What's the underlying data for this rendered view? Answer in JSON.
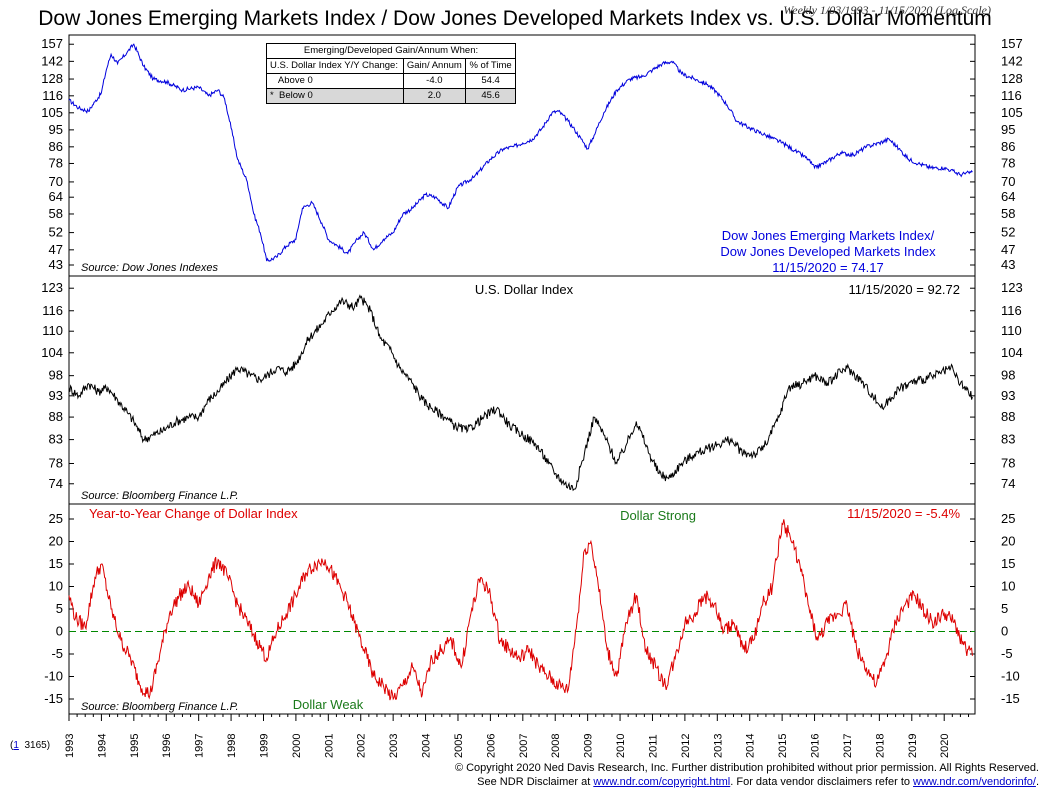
{
  "title": "Dow Jones Emerging Markets Index / Dow Jones Developed Markets Index vs. U.S. Dollar Momentum",
  "subtitle": "Weekly 1/03/1993 - 11/15/2020 (Log Scale)",
  "table": {
    "header": "Emerging/Developed Gain/Annum When:",
    "col1": "U.S. Dollar Index Y/Y Change:",
    "col2": "Gain/ Annum",
    "col3": "% of Time",
    "rows": [
      {
        "label": "Above 0",
        "gain": "-4.0",
        "pct": "54.4",
        "mark": ""
      },
      {
        "label": "Below 0",
        "gain": "2.0",
        "pct": "45.6",
        "mark": "*"
      }
    ]
  },
  "footer": {
    "line1": "© Copyright 2020 Ned Davis Research, Inc.  Further distribution prohibited without prior permission.  All Rights Reserved.",
    "line2_pre": "See NDR Disclaimer at ",
    "link1": "www.ndr.com/copyright.html",
    "line2_mid": ".  For data vendor disclaimers refer to ",
    "link2": "www.ndr.com/vendorinfo/",
    "line2_post": ".",
    "chart_ref_num": "1",
    "chart_ref": "3165)"
  },
  "colors": {
    "panel1": "#0000dd",
    "panel2": "#000000",
    "panel3": "#dd0000",
    "zero": "#008800",
    "green_text": "#1a7a1a"
  },
  "chart_data": [
    {
      "type": "line",
      "panel": "ratio",
      "log_scale": true,
      "ylim": [
        42,
        160
      ],
      "ticks": [
        43,
        47,
        52,
        58,
        64,
        70,
        78,
        86,
        95,
        105,
        116,
        128,
        142,
        157
      ],
      "source": "Source: Dow Jones Indexes",
      "label_lines": [
        "Dow Jones Emerging Markets Index/",
        "Dow Jones Developed Markets Index",
        "11/15/2020 = 74.17"
      ],
      "x": [
        1993.0,
        1993.3,
        1993.6,
        1993.8,
        1994.0,
        1994.15,
        1994.3,
        1994.5,
        1994.8,
        1995.0,
        1995.3,
        1995.6,
        1996.0,
        1996.5,
        1997.0,
        1997.3,
        1997.6,
        1997.8,
        1998.0,
        1998.2,
        1998.5,
        1998.7,
        1998.9,
        1999.1,
        1999.4,
        1999.7,
        2000.0,
        2000.2,
        2000.5,
        2000.8,
        2001.0,
        2001.3,
        2001.6,
        2001.9,
        2002.1,
        2002.4,
        2002.7,
        2003.0,
        2003.3,
        2003.6,
        2004.0,
        2004.3,
        2004.7,
        2005.0,
        2005.5,
        2006.0,
        2006.4,
        2006.7,
        2007.0,
        2007.3,
        2007.6,
        2007.9,
        2008.1,
        2008.4,
        2008.6,
        2008.8,
        2009.0,
        2009.2,
        2009.5,
        2009.9,
        2010.3,
        2010.7,
        2011.0,
        2011.3,
        2011.6,
        2011.9,
        2012.3,
        2012.7,
        2013.0,
        2013.3,
        2013.6,
        2014.0,
        2014.5,
        2015.0,
        2015.4,
        2015.8,
        2016.0,
        2016.4,
        2016.8,
        2017.2,
        2017.6,
        2018.0,
        2018.3,
        2018.6,
        2018.9,
        2019.2,
        2019.6,
        2020.0,
        2020.2,
        2020.5,
        2020.87
      ],
      "y": [
        113,
        108,
        106,
        112,
        118,
        135,
        148,
        140,
        150,
        157,
        138,
        128,
        126,
        120,
        122,
        116,
        120,
        114,
        96,
        80,
        70,
        58,
        52,
        44,
        45,
        48,
        50,
        60,
        62,
        55,
        50,
        48,
        46,
        50,
        52,
        47,
        50,
        52,
        58,
        60,
        65,
        64,
        60,
        68,
        72,
        80,
        85,
        86,
        88,
        90,
        96,
        105,
        106,
        100,
        95,
        90,
        85,
        92,
        105,
        120,
        128,
        130,
        135,
        140,
        142,
        132,
        128,
        124,
        118,
        110,
        100,
        96,
        92,
        88,
        84,
        80,
        76,
        79,
        83,
        82,
        86,
        88,
        90,
        85,
        80,
        78,
        76,
        76,
        75,
        73,
        74.17
      ]
    },
    {
      "type": "line",
      "panel": "dollar",
      "log_scale": true,
      "ylim": [
        71.5,
        125
      ],
      "ticks": [
        74,
        78,
        83,
        88,
        93,
        98,
        104,
        110,
        116,
        123
      ],
      "title": "U.S. Dollar Index",
      "latest_label": "11/15/2020 = 92.72",
      "source": "Source: Bloomberg Finance L.P.",
      "x": [
        1993.0,
        1993.3,
        1993.6,
        1993.9,
        1994.2,
        1994.5,
        1994.8,
        1995.0,
        1995.3,
        1995.6,
        1995.9,
        1996.3,
        1996.7,
        1997.0,
        1997.3,
        1997.6,
        1997.9,
        1998.2,
        1998.6,
        1998.9,
        1999.1,
        1999.4,
        1999.7,
        2000.0,
        2000.4,
        2000.8,
        2001.1,
        2001.4,
        2001.8,
        2002.0,
        2002.3,
        2002.6,
        2002.9,
        2003.2,
        2003.6,
        2003.9,
        2004.2,
        2004.6,
        2004.9,
        2005.3,
        2005.8,
        2006.2,
        2006.6,
        2007.0,
        2007.4,
        2007.8,
        2008.0,
        2008.3,
        2008.6,
        2008.9,
        2009.2,
        2009.5,
        2009.9,
        2010.2,
        2010.5,
        2010.9,
        2011.2,
        2011.5,
        2011.9,
        2012.3,
        2012.7,
        2013.0,
        2013.4,
        2013.8,
        2014.2,
        2014.5,
        2014.9,
        2015.2,
        2015.6,
        2016.0,
        2016.4,
        2016.8,
        2017.0,
        2017.4,
        2017.8,
        2018.1,
        2018.5,
        2018.9,
        2019.3,
        2019.7,
        2020.0,
        2020.2,
        2020.5,
        2020.87
      ],
      "y": [
        95,
        93,
        96,
        94,
        95,
        92,
        89,
        87,
        83,
        84,
        85,
        87,
        88,
        88,
        92,
        94,
        97,
        100,
        98,
        97,
        98,
        100,
        99,
        101,
        108,
        112,
        116,
        119,
        117,
        120,
        116,
        108,
        105,
        100,
        96,
        92,
        90,
        88,
        86,
        85,
        88,
        90,
        86,
        84,
        82,
        78,
        76,
        74,
        73,
        80,
        88,
        84,
        78,
        82,
        87,
        80,
        76,
        75,
        78,
        80,
        81,
        82,
        83,
        80,
        80,
        82,
        88,
        95,
        96,
        98,
        96,
        99,
        100,
        97,
        93,
        90,
        94,
        96,
        97,
        98,
        99,
        100,
        96,
        92.72
      ]
    },
    {
      "type": "line",
      "panel": "yoy_change",
      "ylim": [
        -17,
        27
      ],
      "ticks": [
        -15,
        -10,
        -5,
        0,
        5,
        10,
        15,
        20,
        25
      ],
      "title": "Year-to-Year Change of Dollar Index",
      "latest_label": "11/15/2020 = -5.4%",
      "top_label": "Dollar Strong",
      "bottom_label": "Dollar Weak",
      "source": "Source: Bloomberg Finance L.P.",
      "x": [
        1993.0,
        1993.2,
        1993.5,
        1993.8,
        1994.0,
        1994.3,
        1994.6,
        1994.9,
        1995.2,
        1995.5,
        1995.8,
        1996.1,
        1996.4,
        1996.7,
        1997.0,
        1997.3,
        1997.6,
        1997.9,
        1998.2,
        1998.5,
        1998.8,
        1999.1,
        1999.4,
        1999.7,
        2000.0,
        2000.3,
        2000.6,
        2000.9,
        2001.2,
        2001.5,
        2001.8,
        2002.1,
        2002.4,
        2002.7,
        2003.0,
        2003.3,
        2003.6,
        2003.9,
        2004.2,
        2004.5,
        2004.8,
        2005.1,
        2005.4,
        2005.7,
        2006.0,
        2006.3,
        2006.6,
        2006.9,
        2007.2,
        2007.5,
        2007.8,
        2008.1,
        2008.4,
        2008.7,
        2008.9,
        2009.1,
        2009.3,
        2009.6,
        2009.9,
        2010.2,
        2010.5,
        2010.8,
        2011.1,
        2011.4,
        2011.7,
        2012.0,
        2012.3,
        2012.6,
        2012.9,
        2013.2,
        2013.5,
        2013.8,
        2014.1,
        2014.4,
        2014.7,
        2015.0,
        2015.2,
        2015.5,
        2015.8,
        2016.1,
        2016.4,
        2016.7,
        2017.0,
        2017.3,
        2017.6,
        2017.9,
        2018.2,
        2018.5,
        2018.8,
        2019.1,
        2019.4,
        2019.7,
        2020.0,
        2020.3,
        2020.6,
        2020.87
      ],
      "y": [
        8,
        3,
        1,
        12,
        15,
        5,
        -2,
        -6,
        -12,
        -14,
        -5,
        4,
        8,
        10,
        6,
        12,
        16,
        12,
        6,
        2,
        -2,
        -6,
        0,
        4,
        8,
        13,
        15,
        16,
        12,
        8,
        2,
        -4,
        -10,
        -12,
        -15,
        -12,
        -8,
        -14,
        -6,
        -4,
        -2,
        -8,
        4,
        12,
        8,
        -2,
        -4,
        -6,
        -4,
        -8,
        -10,
        -12,
        -13,
        4,
        18,
        20,
        12,
        -4,
        -10,
        2,
        8,
        -4,
        -8,
        -12,
        -6,
        2,
        4,
        8,
        6,
        0,
        2,
        -4,
        -2,
        6,
        10,
        24,
        22,
        16,
        6,
        -2,
        2,
        4,
        6,
        -4,
        -8,
        -12,
        -6,
        2,
        6,
        8,
        4,
        2,
        4,
        2,
        -3,
        -5.4
      ]
    }
  ],
  "x_axis": {
    "years": [
      "1993",
      "1994",
      "1995",
      "1996",
      "1997",
      "1998",
      "1999",
      "2000",
      "2001",
      "2002",
      "2003",
      "2004",
      "2005",
      "2006",
      "2007",
      "2008",
      "2009",
      "2010",
      "2011",
      "2012",
      "2013",
      "2014",
      "2015",
      "2016",
      "2017",
      "2018",
      "2019",
      "2020"
    ]
  }
}
